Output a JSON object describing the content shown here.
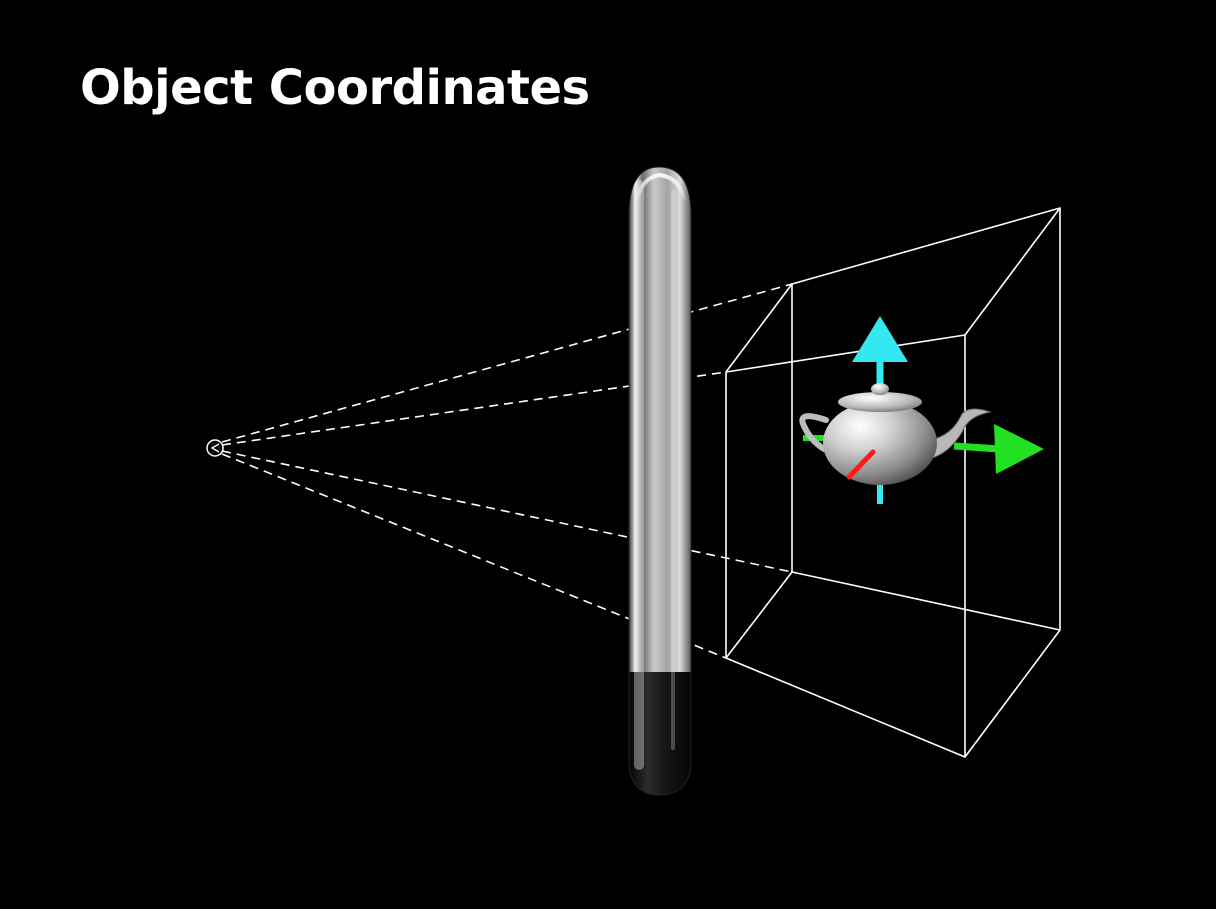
{
  "slide": {
    "title": "Object Coordinates"
  },
  "diagram": {
    "elements": [
      "eye-point",
      "phone-side-view",
      "view-frustum",
      "teapot",
      "axis-arrows"
    ],
    "colors": {
      "background": "#000000",
      "title_text": "#ffffff",
      "frustum_lines": "#ffffff",
      "sight_lines": "#ffffff",
      "axis_x": "#22e022",
      "axis_y": "#33e8f0",
      "axis_z": "#ff1a1a",
      "phone_body": "#b4b4b4",
      "phone_base": "#111111"
    }
  }
}
